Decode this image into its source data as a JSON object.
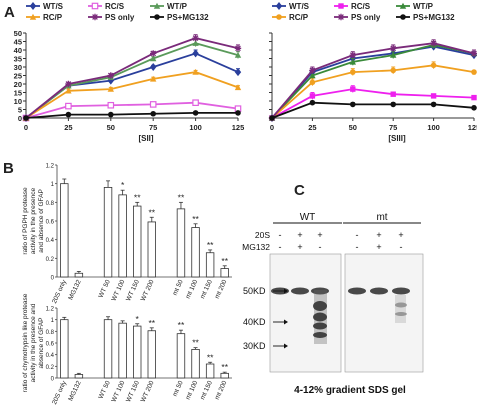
{
  "panel_labels": {
    "a": "A",
    "b": "B",
    "c": "C"
  },
  "chart_data": [
    {
      "id": "A-left",
      "type": "line",
      "xlabel": "[SII]",
      "ylabel": "",
      "x": [
        0,
        25,
        50,
        75,
        100,
        125
      ],
      "xlim": [
        0,
        125
      ],
      "ylim": [
        0,
        50
      ],
      "yticks": [
        0,
        5,
        10,
        15,
        20,
        25,
        30,
        35,
        40,
        45,
        50
      ],
      "xticks": [
        0,
        25,
        50,
        75,
        100,
        125
      ],
      "series": [
        {
          "name": "WT/S",
          "color": "#2a3f9c",
          "marker": "diamond",
          "values": [
            0,
            19,
            22,
            30,
            38,
            27
          ],
          "errors": [
            0,
            1,
            1,
            1,
            2,
            2
          ]
        },
        {
          "name": "RC/S",
          "color": "#e060e0",
          "marker": "square-open",
          "values": [
            0,
            7,
            7.5,
            8,
            9,
            5.5
          ],
          "errors": [
            0,
            0.5,
            0.5,
            0.5,
            1,
            0.5
          ]
        },
        {
          "name": "WT/P",
          "color": "#5a9a5a",
          "marker": "triangle",
          "values": [
            0,
            19,
            24,
            35,
            44,
            37
          ],
          "errors": [
            0,
            1,
            1,
            1,
            2,
            2
          ]
        },
        {
          "name": "RC/P",
          "color": "#f0a020",
          "marker": "triangle",
          "values": [
            0,
            16,
            17,
            23,
            27,
            18
          ],
          "errors": [
            0,
            1,
            1,
            1,
            1,
            1
          ]
        },
        {
          "name": "PS only",
          "color": "#7a2a7a",
          "marker": "star",
          "values": [
            0,
            20,
            25,
            38,
            47,
            41
          ],
          "errors": [
            0,
            1,
            1,
            1,
            2,
            2
          ]
        },
        {
          "name": "PS+MG132",
          "color": "#111111",
          "marker": "circle",
          "values": [
            0,
            2,
            2,
            2.5,
            3,
            3
          ],
          "errors": [
            0,
            0.3,
            0.3,
            0.3,
            0.3,
            0.3
          ]
        }
      ]
    },
    {
      "id": "A-right",
      "type": "line",
      "xlabel": "[SIII]",
      "ylabel": "",
      "x": [
        0,
        25,
        50,
        75,
        100,
        125
      ],
      "xlim": [
        0,
        125
      ],
      "ylim": [
        0,
        50
      ],
      "yticks": [
        0,
        5,
        10,
        15,
        20,
        25,
        30,
        35,
        40,
        45,
        50
      ],
      "xticks": [
        0,
        25,
        50,
        75,
        100,
        125
      ],
      "series": [
        {
          "name": "WT/S",
          "color": "#2a3f9c",
          "marker": "diamond",
          "values": [
            0,
            27,
            35,
            38,
            42,
            37
          ],
          "errors": [
            0,
            2,
            2,
            2,
            2,
            2
          ]
        },
        {
          "name": "RC/S",
          "color": "#ee20ee",
          "marker": "square",
          "values": [
            0,
            13,
            17,
            14,
            13,
            12
          ],
          "errors": [
            0,
            2,
            2,
            1,
            1,
            1
          ]
        },
        {
          "name": "WT/P",
          "color": "#3a8a3a",
          "marker": "triangle",
          "values": [
            0,
            25,
            33,
            37,
            43,
            38
          ],
          "errors": [
            0,
            2,
            2,
            2,
            2,
            2
          ]
        },
        {
          "name": "RC/P",
          "color": "#f0a020",
          "marker": "circle",
          "values": [
            0,
            21,
            27,
            28,
            31,
            27
          ],
          "errors": [
            0,
            2,
            2,
            2,
            2,
            1
          ]
        },
        {
          "name": "PS only",
          "color": "#7a2a7a",
          "marker": "star",
          "values": [
            0,
            28,
            37,
            41,
            44,
            38
          ],
          "errors": [
            0,
            2,
            2,
            2,
            2,
            2
          ]
        },
        {
          "name": "PS+MG132",
          "color": "#111111",
          "marker": "circle",
          "values": [
            0,
            9,
            8,
            8,
            8,
            6
          ],
          "errors": [
            0,
            1,
            1,
            1,
            1,
            1
          ]
        }
      ]
    },
    {
      "id": "B-top",
      "type": "bar",
      "ylabel": "ratio of PGPH protease activity in the presence and absence of GFAP",
      "ylim": [
        0,
        1.2
      ],
      "yticks": [
        "0",
        "0.2",
        "0.4",
        "0.6",
        "0.8",
        "1",
        "1.2"
      ],
      "categories": [
        "20S only",
        "MG132",
        "",
        "WT 50",
        "WT 100",
        "WT 150",
        "WT 200",
        "",
        "mt  50",
        "mt 100",
        "mt 150",
        "mt 200"
      ],
      "values": [
        1.0,
        0.04,
        null,
        0.96,
        0.88,
        0.76,
        0.59,
        null,
        0.73,
        0.53,
        0.26,
        0.09
      ],
      "errors": [
        0.05,
        0.02,
        null,
        0.07,
        0.05,
        0.04,
        0.05,
        null,
        0.07,
        0.04,
        0.03,
        0.03
      ],
      "annotations": [
        "",
        "",
        "",
        "",
        "*",
        "**",
        "**",
        "",
        "**",
        "**",
        "**",
        "**"
      ]
    },
    {
      "id": "B-bottom",
      "type": "bar",
      "ylabel": "ratio of chymotrypsin like protease activity in the presence and absence of GFAP",
      "ylim": [
        0,
        1.2
      ],
      "yticks": [
        "0",
        "0.2",
        "0.4",
        "0.6",
        "0.8",
        "1",
        "1.2"
      ],
      "categories": [
        "20S only",
        "MG132",
        "",
        "WT 50",
        "WT 100",
        "WT 150",
        "WT 200",
        "",
        "mt  50",
        "mt 100",
        "mt 150",
        "mt 200"
      ],
      "values": [
        1.0,
        0.06,
        null,
        1.0,
        0.94,
        0.89,
        0.81,
        null,
        0.76,
        0.49,
        0.24,
        0.08
      ],
      "errors": [
        0.04,
        0.02,
        null,
        0.05,
        0.04,
        0.04,
        0.05,
        null,
        0.06,
        0.03,
        0.03,
        0.02
      ],
      "annotations": [
        "",
        "",
        "",
        "",
        "",
        "*",
        "**",
        "",
        "**",
        "**",
        "**",
        "**"
      ]
    }
  ],
  "gel": {
    "groups": [
      "WT",
      "mt"
    ],
    "row_labels": [
      "20S",
      "MG132"
    ],
    "row_signs": [
      [
        "-",
        "+",
        "+",
        "-",
        "+",
        "+"
      ],
      [
        "-",
        "+",
        "-",
        "-",
        "+",
        "-"
      ]
    ],
    "markers": [
      "50KD",
      "40KD",
      "30KD"
    ],
    "caption": "4-12% gradient SDS gel"
  }
}
